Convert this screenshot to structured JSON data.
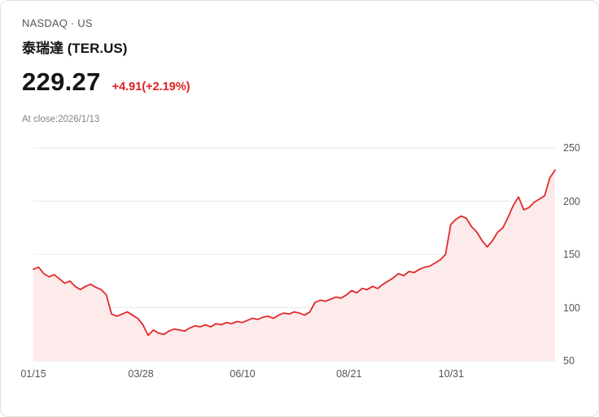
{
  "header": {
    "market": "NASDAQ · US",
    "name": "泰瑞達 (TER.US)",
    "price": "229.27",
    "change": "+4.91(+2.19%)",
    "as_of": "At close:2026/1/13"
  },
  "colors": {
    "up_red": "#e02020",
    "line": "#e12a2a",
    "fill": "#fdeaea",
    "grid": "#e9e9ea",
    "text_muted": "#55565a"
  },
  "chart_data": {
    "type": "line",
    "title": "TER.US one-year price chart",
    "xlabel": "",
    "ylabel": "",
    "ylim": [
      50,
      250
    ],
    "yticks": [
      250,
      200,
      150,
      100,
      50
    ],
    "grid": "horizontal",
    "legend": "none",
    "xticks": [
      {
        "label": "01/15",
        "pos": 0.0
      },
      {
        "label": "03/28",
        "pos": 0.206
      },
      {
        "label": "06/10",
        "pos": 0.401
      },
      {
        "label": "08/21",
        "pos": 0.605
      },
      {
        "label": "10/31",
        "pos": 0.801
      }
    ],
    "values": [
      136,
      138,
      132,
      129,
      131,
      127,
      123,
      125,
      120,
      117,
      120,
      122,
      119,
      117,
      112,
      94,
      92,
      94,
      96,
      93,
      90,
      84,
      74,
      79,
      76,
      75,
      78,
      80,
      79,
      78,
      81,
      83,
      82,
      84,
      82,
      85,
      84,
      86,
      85,
      87,
      86,
      88,
      90,
      89,
      91,
      92,
      90,
      93,
      95,
      94,
      96,
      95,
      93,
      96,
      105,
      107,
      106,
      108,
      110,
      109,
      112,
      116,
      114,
      118,
      117,
      120,
      118,
      122,
      125,
      128,
      132,
      130,
      134,
      133,
      136,
      138,
      139,
      142,
      145,
      150,
      178,
      183,
      186,
      184,
      176,
      171,
      163,
      157,
      163,
      171,
      175,
      185,
      196,
      204,
      192,
      194,
      199,
      202,
      205,
      222,
      229.27
    ]
  }
}
